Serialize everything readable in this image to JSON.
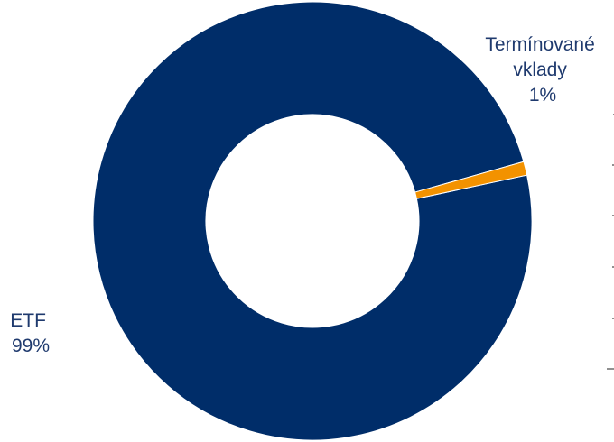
{
  "chart_data": {
    "type": "pie",
    "variant": "donut",
    "title": "",
    "legend": "none",
    "slices": [
      {
        "label_lines": [
          "ETF",
          "99%"
        ],
        "name": "ETF",
        "value": 99,
        "color": "#002d69"
      },
      {
        "label_lines": [
          "Termínované",
          "vklady",
          "1%"
        ],
        "name": "Termínované vklady",
        "value": 1,
        "color": "#f39200"
      }
    ],
    "background": "#ffffff",
    "label_color": "#1f3a6e"
  }
}
